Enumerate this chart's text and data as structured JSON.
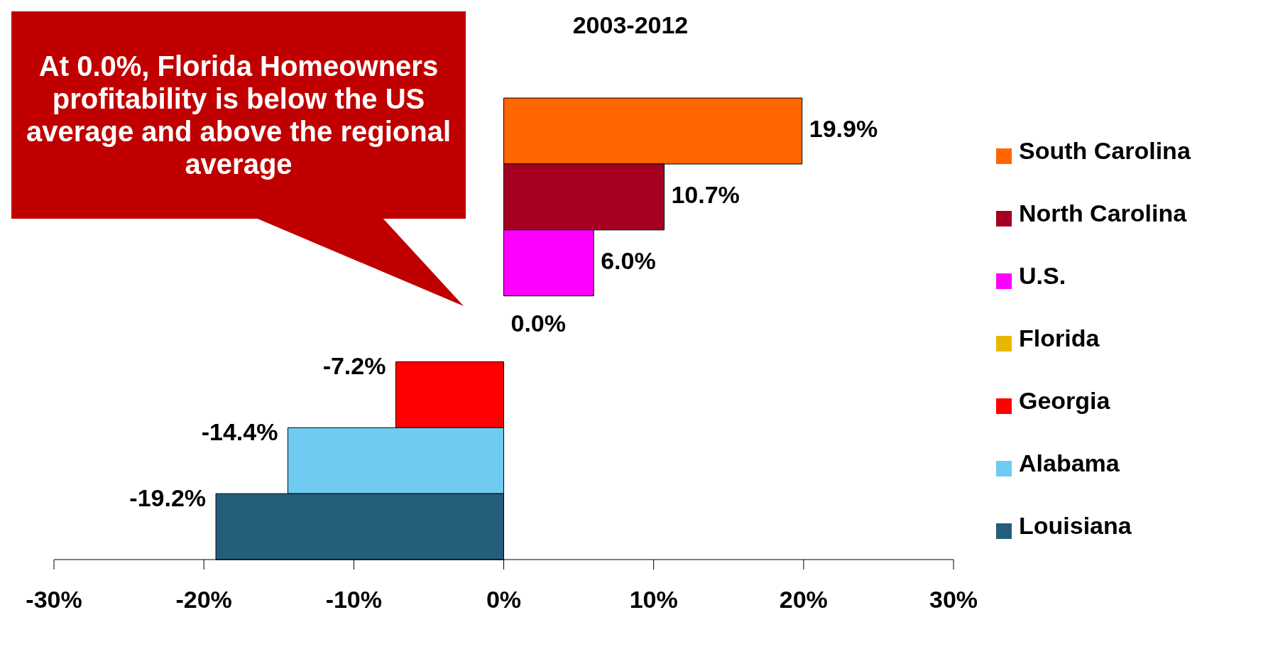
{
  "chart_data": {
    "type": "bar",
    "orientation": "horizontal",
    "stacked": true,
    "title": "2003-2012",
    "categories": [
      null,
      null,
      null,
      null,
      null,
      null,
      null
    ],
    "series": [
      {
        "name": "South Carolina",
        "color": "#ff6600",
        "values": [
          19.9,
          null,
          null,
          null,
          null,
          null,
          null
        ],
        "value_labels": [
          "19.9%",
          null,
          null,
          null,
          null,
          null,
          null
        ]
      },
      {
        "name": "North Carolina",
        "color": "#a50021",
        "values": [
          null,
          10.7,
          null,
          null,
          null,
          null,
          null
        ],
        "value_labels": [
          null,
          "10.7%",
          null,
          null,
          null,
          null,
          null
        ]
      },
      {
        "name": "U.S.",
        "color": "#ff00ff",
        "values": [
          null,
          null,
          6.0,
          null,
          null,
          null,
          null
        ],
        "value_labels": [
          null,
          null,
          "6.0%",
          null,
          null,
          null,
          null
        ]
      },
      {
        "name": "Florida",
        "color": "#e6b800",
        "values": [
          null,
          null,
          null,
          0.0,
          null,
          null,
          null
        ],
        "value_labels": [
          null,
          null,
          null,
          "0.0%",
          null,
          null,
          null
        ]
      },
      {
        "name": "Georgia",
        "color": "#ff0000",
        "values": [
          null,
          null,
          null,
          null,
          -7.2,
          null,
          null
        ],
        "value_labels": [
          null,
          null,
          null,
          null,
          "-7.2%",
          null,
          null
        ]
      },
      {
        "name": "Alabama",
        "color": "#6fcbf0",
        "values": [
          null,
          null,
          null,
          null,
          null,
          -14.4,
          null
        ],
        "value_labels": [
          null,
          null,
          null,
          null,
          null,
          "-14.4%",
          null
        ]
      },
      {
        "name": "Louisiana",
        "color": "#235e7a",
        "values": [
          null,
          null,
          null,
          null,
          null,
          null,
          -19.2
        ],
        "value_labels": [
          null,
          null,
          null,
          null,
          null,
          null,
          "-19.2%"
        ]
      }
    ],
    "xlim": [
      -30,
      30
    ],
    "xticks": [
      {
        "value": -30,
        "label": "-30%"
      },
      {
        "value": -20,
        "label": "-20%"
      },
      {
        "value": -10,
        "label": "-10%"
      },
      {
        "value": 0,
        "label": "0%"
      },
      {
        "value": 10,
        "label": "10%"
      },
      {
        "value": 20,
        "label": "20%"
      },
      {
        "value": 30,
        "label": "30%"
      }
    ],
    "tick_labels": "x",
    "grid": false,
    "legend": "right",
    "annotations": [
      "At 0.0%, Florida Homeowners profitability is below the US average and above the regional average"
    ]
  }
}
